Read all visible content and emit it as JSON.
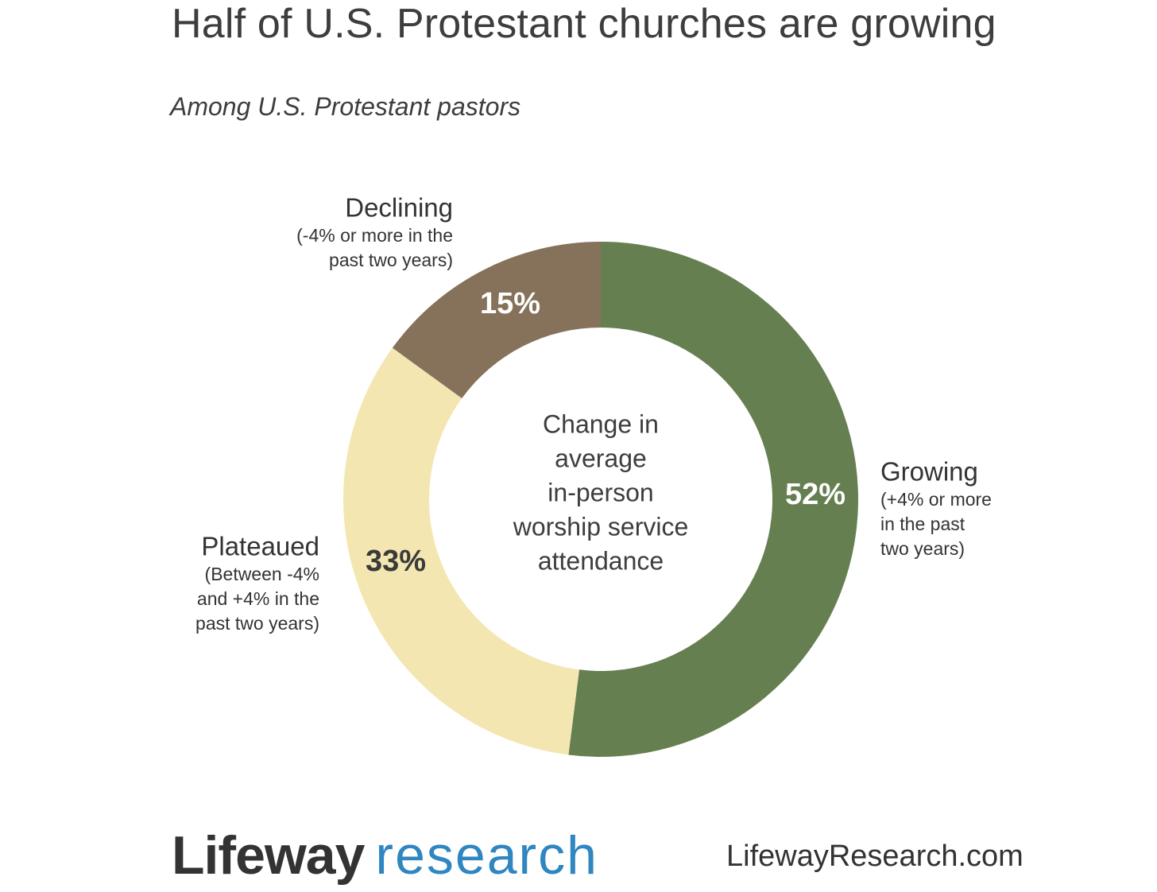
{
  "title": "Half of U.S. Protestant churches are growing",
  "subtitle": "Among U.S. Protestant pastors",
  "chart_data": {
    "type": "pie",
    "style": "donut",
    "center_label": [
      "Change in",
      "average",
      "in-person",
      "worship service",
      "attendance"
    ],
    "slices": [
      {
        "name": "Growing",
        "description": [
          "(+4% or more",
          "in the past",
          "two years)"
        ],
        "value": 52,
        "label": "52%",
        "color": "#667f51",
        "label_color": "#ffffff"
      },
      {
        "name": "Plateaued",
        "description": [
          "(Between -4%",
          "and +4% in the",
          "past two years)"
        ],
        "value": 33,
        "label": "33%",
        "color": "#f3e6b1",
        "label_color": "#3a3a3a"
      },
      {
        "name": "Declining",
        "description": [
          "(-4% or more in the",
          "past two years)"
        ],
        "value": 15,
        "label": "15%",
        "color": "#86725a",
        "label_color": "#ffffff"
      }
    ]
  },
  "footer": {
    "brand_word1": "Lifeway",
    "brand_word2": "research",
    "website": "LifewayResearch.com"
  }
}
